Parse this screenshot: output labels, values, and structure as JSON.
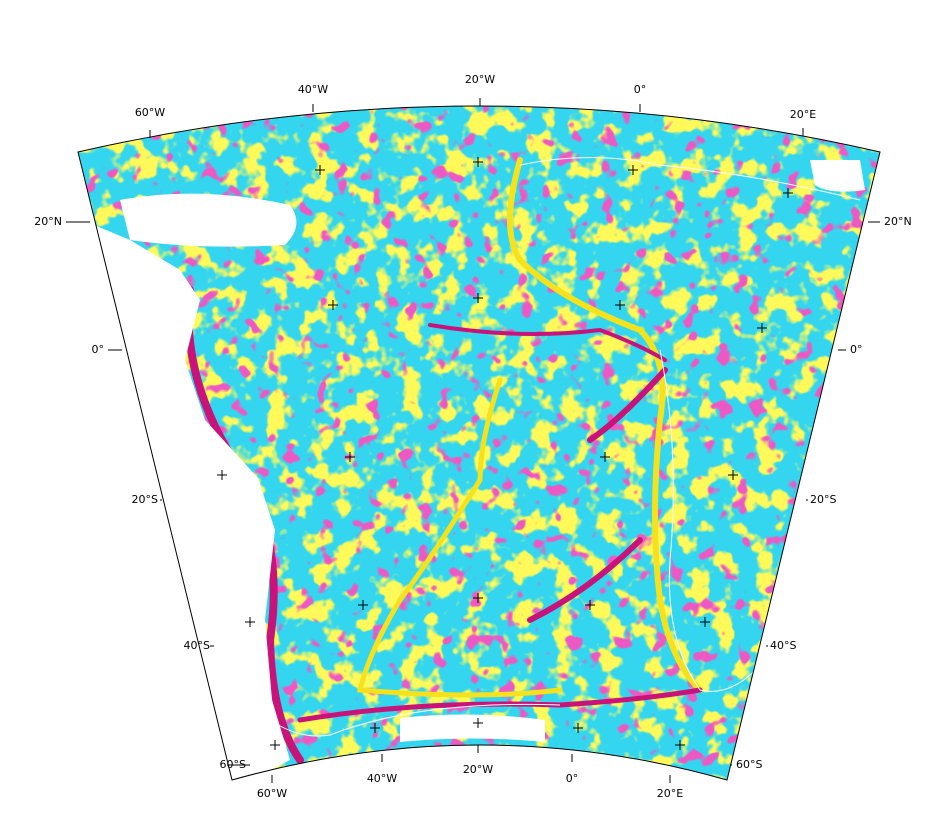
{
  "map": {
    "top_labels": [
      "60°W",
      "40°W",
      "20°W",
      "0°",
      "20°E"
    ],
    "bottom_labels": [
      "60°W",
      "40°W",
      "20°W",
      "0°",
      "20°E"
    ],
    "left_labels": [
      "20°N",
      "0°",
      "20°S",
      "40°S",
      "60°S"
    ],
    "right_labels": [
      "20°N",
      "0°",
      "20°S",
      "40°S",
      "60°S"
    ]
  }
}
